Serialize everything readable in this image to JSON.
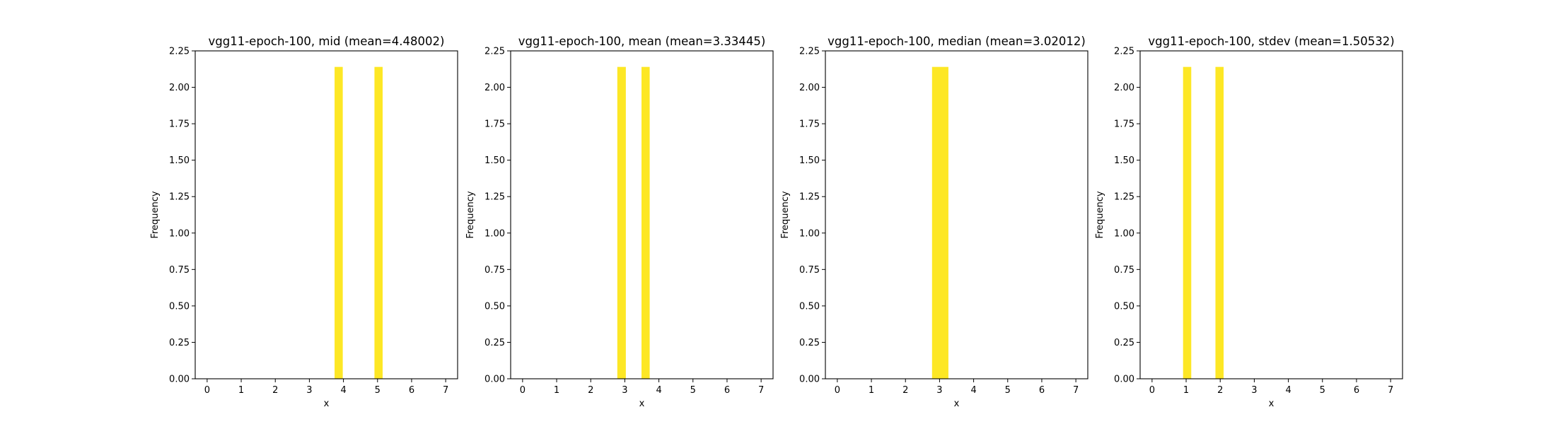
{
  "chart_data": [
    {
      "type": "bar",
      "title": "vgg11-epoch-100, mid (mean=4.48002)",
      "xlabel": "x",
      "ylabel": "Frequency",
      "xlim": [
        -0.35,
        7.35
      ],
      "ylim": [
        0,
        2.25
      ],
      "xticks": [
        "0",
        "1",
        "2",
        "3",
        "4",
        "5",
        "6",
        "7"
      ],
      "yticks": [
        "0.00",
        "0.25",
        "0.50",
        "0.75",
        "1.00",
        "1.25",
        "1.50",
        "1.75",
        "2.00",
        "2.25"
      ],
      "bars": [
        {
          "x0": 3.74,
          "x1": 3.98,
          "value": 2.14
        },
        {
          "x0": 4.91,
          "x1": 5.15,
          "value": 2.14
        }
      ],
      "color": "#fde725"
    },
    {
      "type": "bar",
      "title": "vgg11-epoch-100, mean (mean=3.33445)",
      "xlabel": "x",
      "ylabel": "Frequency",
      "xlim": [
        -0.35,
        7.35
      ],
      "ylim": [
        0,
        2.25
      ],
      "xticks": [
        "0",
        "1",
        "2",
        "3",
        "4",
        "5",
        "6",
        "7"
      ],
      "yticks": [
        "0.00",
        "0.25",
        "0.50",
        "0.75",
        "1.00",
        "1.25",
        "1.50",
        "1.75",
        "2.00",
        "2.25"
      ],
      "bars": [
        {
          "x0": 2.78,
          "x1": 3.03,
          "value": 2.14
        },
        {
          "x0": 3.49,
          "x1": 3.73,
          "value": 2.14
        }
      ],
      "color": "#fde725"
    },
    {
      "type": "bar",
      "title": "vgg11-epoch-100, median (mean=3.02012)",
      "xlabel": "x",
      "ylabel": "Frequency",
      "xlim": [
        -0.35,
        7.35
      ],
      "ylim": [
        0,
        2.25
      ],
      "xticks": [
        "0",
        "1",
        "2",
        "3",
        "4",
        "5",
        "6",
        "7"
      ],
      "yticks": [
        "0.00",
        "0.25",
        "0.50",
        "0.75",
        "1.00",
        "1.25",
        "1.50",
        "1.75",
        "2.00",
        "2.25"
      ],
      "bars": [
        {
          "x0": 2.78,
          "x1": 3.26,
          "value": 2.14
        }
      ],
      "color": "#fde725"
    },
    {
      "type": "bar",
      "title": "vgg11-epoch-100, stdev (mean=1.50532)",
      "xlabel": "x",
      "ylabel": "Frequency",
      "xlim": [
        -0.35,
        7.35
      ],
      "ylim": [
        0,
        2.25
      ],
      "xticks": [
        "0",
        "1",
        "2",
        "3",
        "4",
        "5",
        "6",
        "7"
      ],
      "yticks": [
        "0.00",
        "0.25",
        "0.50",
        "0.75",
        "1.00",
        "1.25",
        "1.50",
        "1.75",
        "2.00",
        "2.25"
      ],
      "bars": [
        {
          "x0": 0.91,
          "x1": 1.15,
          "value": 2.14
        },
        {
          "x0": 1.86,
          "x1": 2.1,
          "value": 2.14
        }
      ],
      "color": "#fde725"
    }
  ]
}
